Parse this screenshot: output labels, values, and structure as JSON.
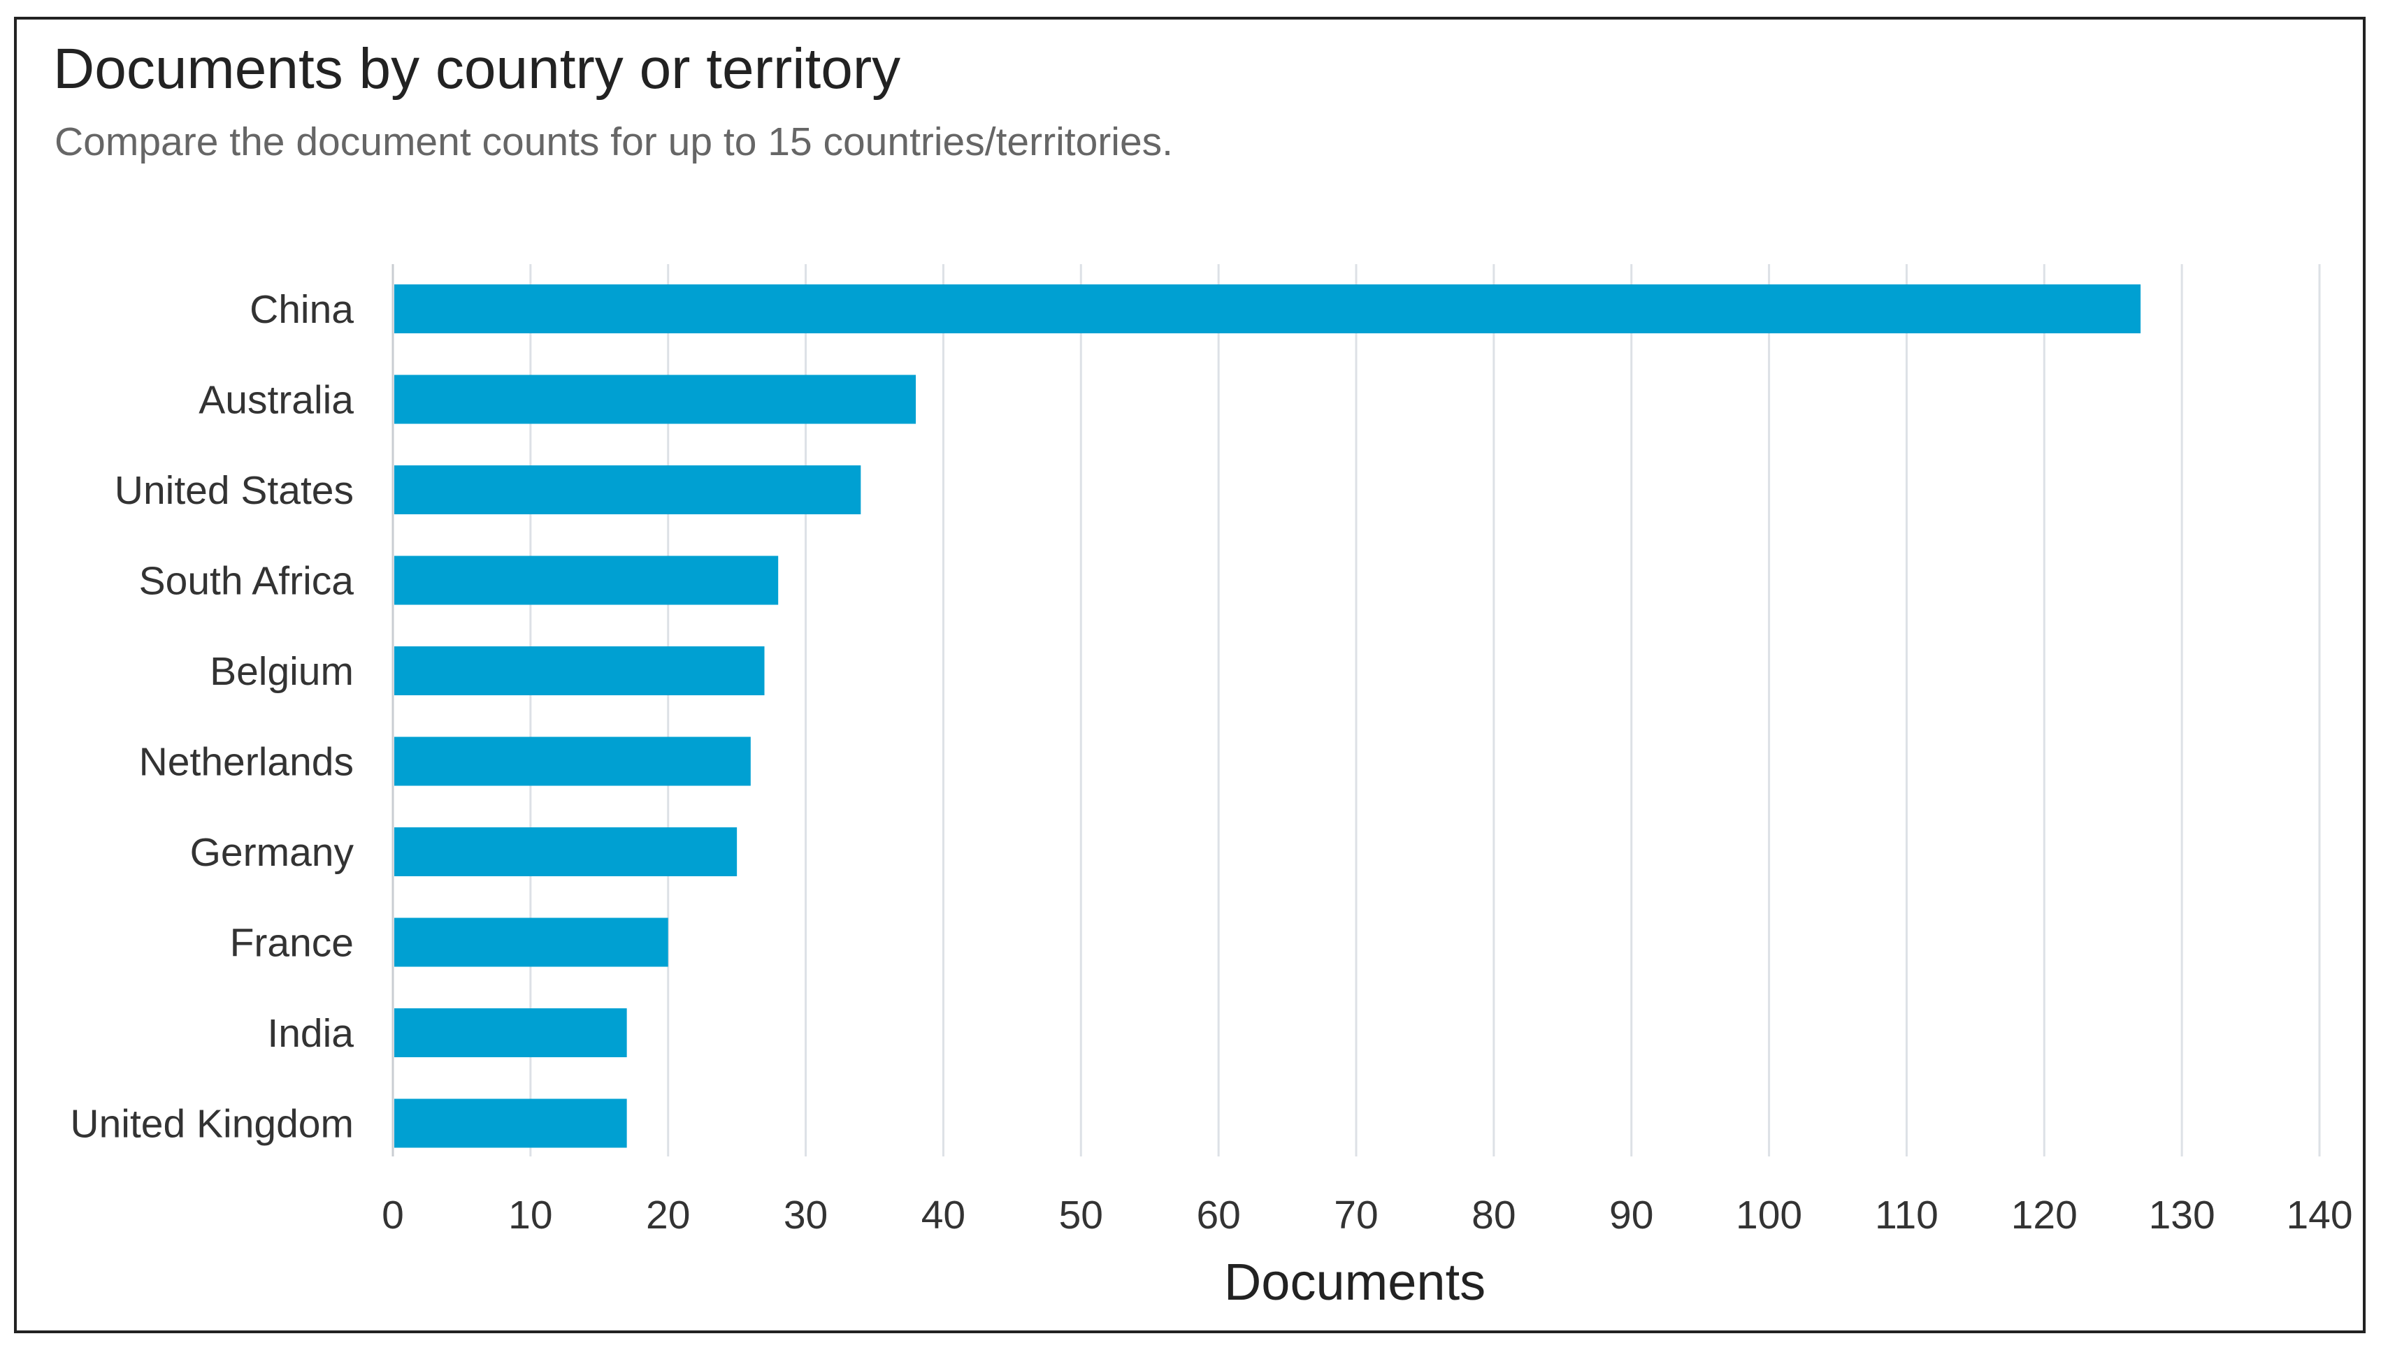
{
  "header": {
    "title": "Documents by country or territory",
    "subtitle": "Compare the document counts for up to 15 countries/territories."
  },
  "colors": {
    "bar": "#00a0d2",
    "grid": "#dde1e6",
    "text": "#333333"
  },
  "chart_data": {
    "type": "bar",
    "orientation": "horizontal",
    "categories": [
      "China",
      "Australia",
      "United States",
      "South Africa",
      "Belgium",
      "Netherlands",
      "Germany",
      "France",
      "India",
      "United Kingdom"
    ],
    "values": [
      127,
      38,
      34,
      28,
      27,
      26,
      25,
      20,
      17,
      17
    ],
    "xlabel": "Documents",
    "ylabel": "",
    "xlim": [
      0,
      140
    ],
    "xticks": [
      0,
      10,
      20,
      30,
      40,
      50,
      60,
      70,
      80,
      90,
      100,
      110,
      120,
      130,
      140
    ],
    "grid": "vertical",
    "legend": "none"
  }
}
